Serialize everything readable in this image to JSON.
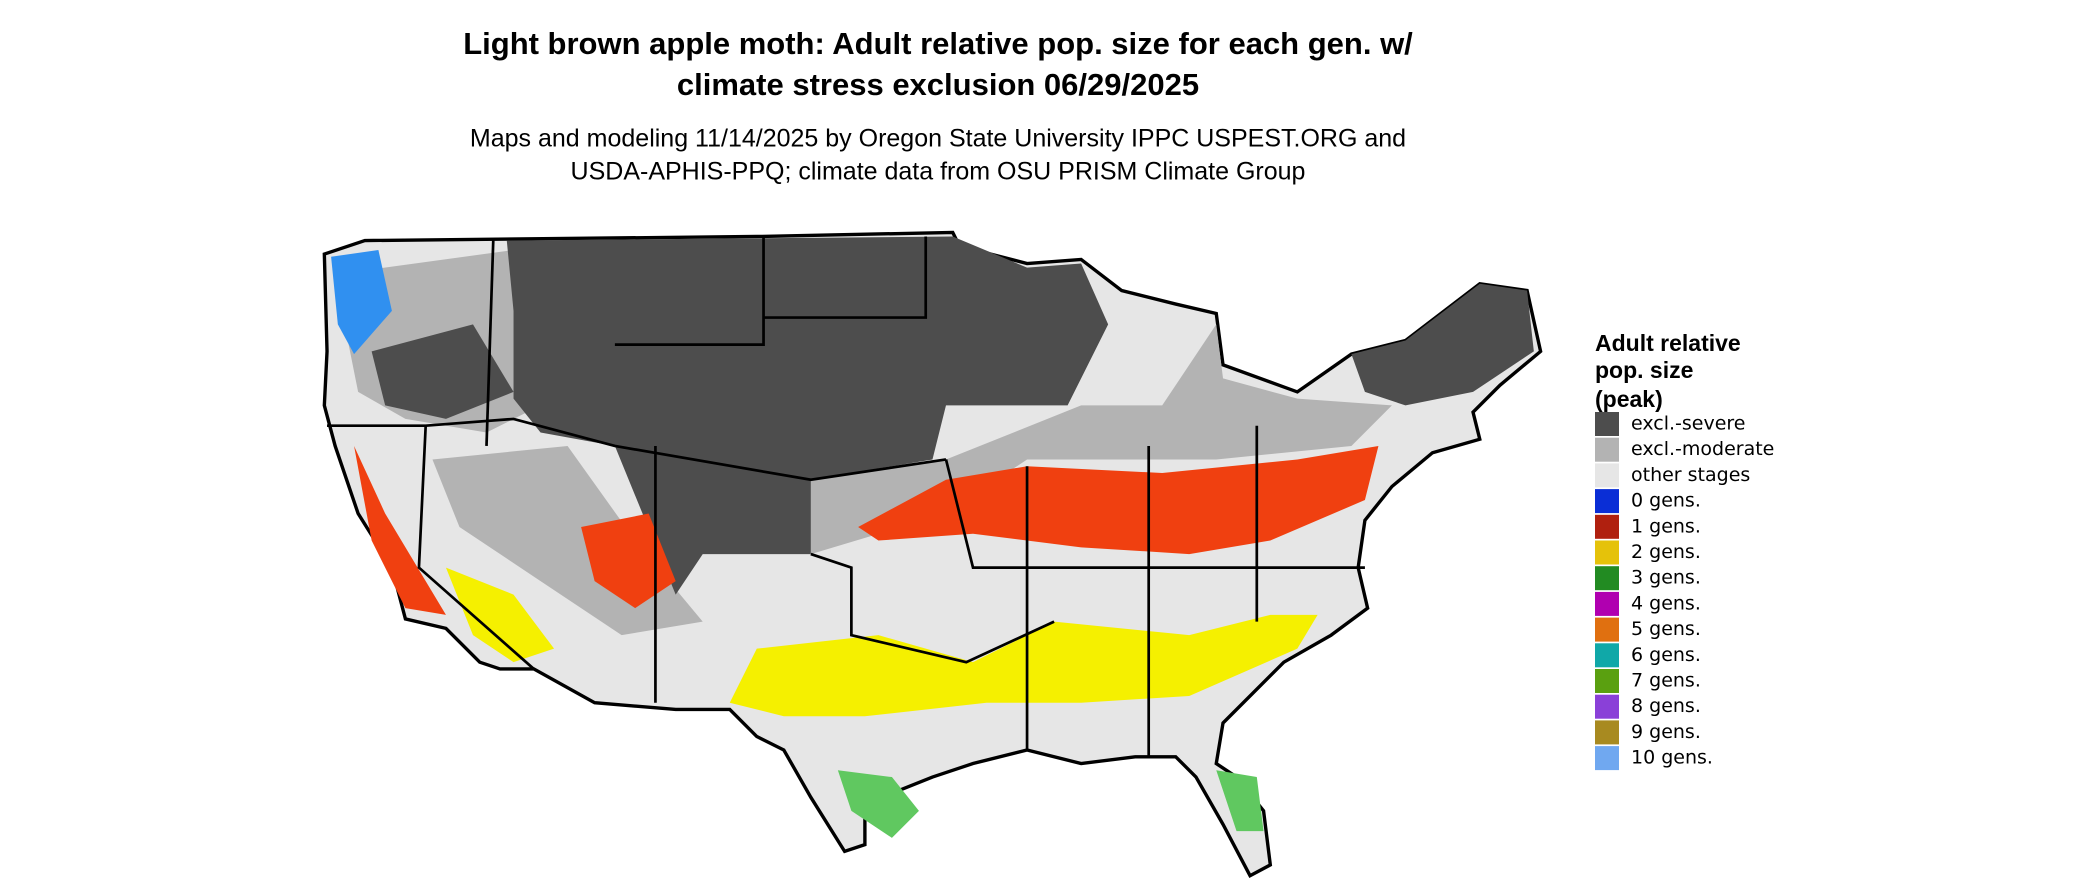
{
  "header": {
    "title": [
      "Light brown apple moth: Adult relative pop. size for each gen. w/",
      "climate stress exclusion 06/29/2025"
    ],
    "subtitle": [
      "Maps and modeling 11/14/2025 by Oregon State University IPPC USPEST.ORG and",
      "USDA-APHIS-PPQ; climate data from OSU PRISM Climate Group"
    ]
  },
  "legend": {
    "title": [
      "Adult relative",
      "pop. size",
      "(peak)"
    ],
    "items": [
      {
        "label": "excl.-severe",
        "color": "#4d4d4d"
      },
      {
        "label": "excl.-moderate",
        "color": "#b3b3b3"
      },
      {
        "label": "other stages",
        "color": "#e6e6e6"
      },
      {
        "label": "0 gens.",
        "color": "#0a2ed6"
      },
      {
        "label": "1 gens.",
        "color": "#b0200f"
      },
      {
        "label": "2 gens.",
        "color": "#e5c20a"
      },
      {
        "label": "3 gens.",
        "color": "#228b22"
      },
      {
        "label": "4 gens.",
        "color": "#b000b0"
      },
      {
        "label": "5 gens.",
        "color": "#e07010"
      },
      {
        "label": "6 gens.",
        "color": "#10a8a8"
      },
      {
        "label": "7 gens.",
        "color": "#5aa010"
      },
      {
        "label": "8 gens.",
        "color": "#8a40d8"
      },
      {
        "label": "9 gens.",
        "color": "#a88a20"
      },
      {
        "label": "10 gens.",
        "color": "#70a8f0"
      }
    ]
  }
}
